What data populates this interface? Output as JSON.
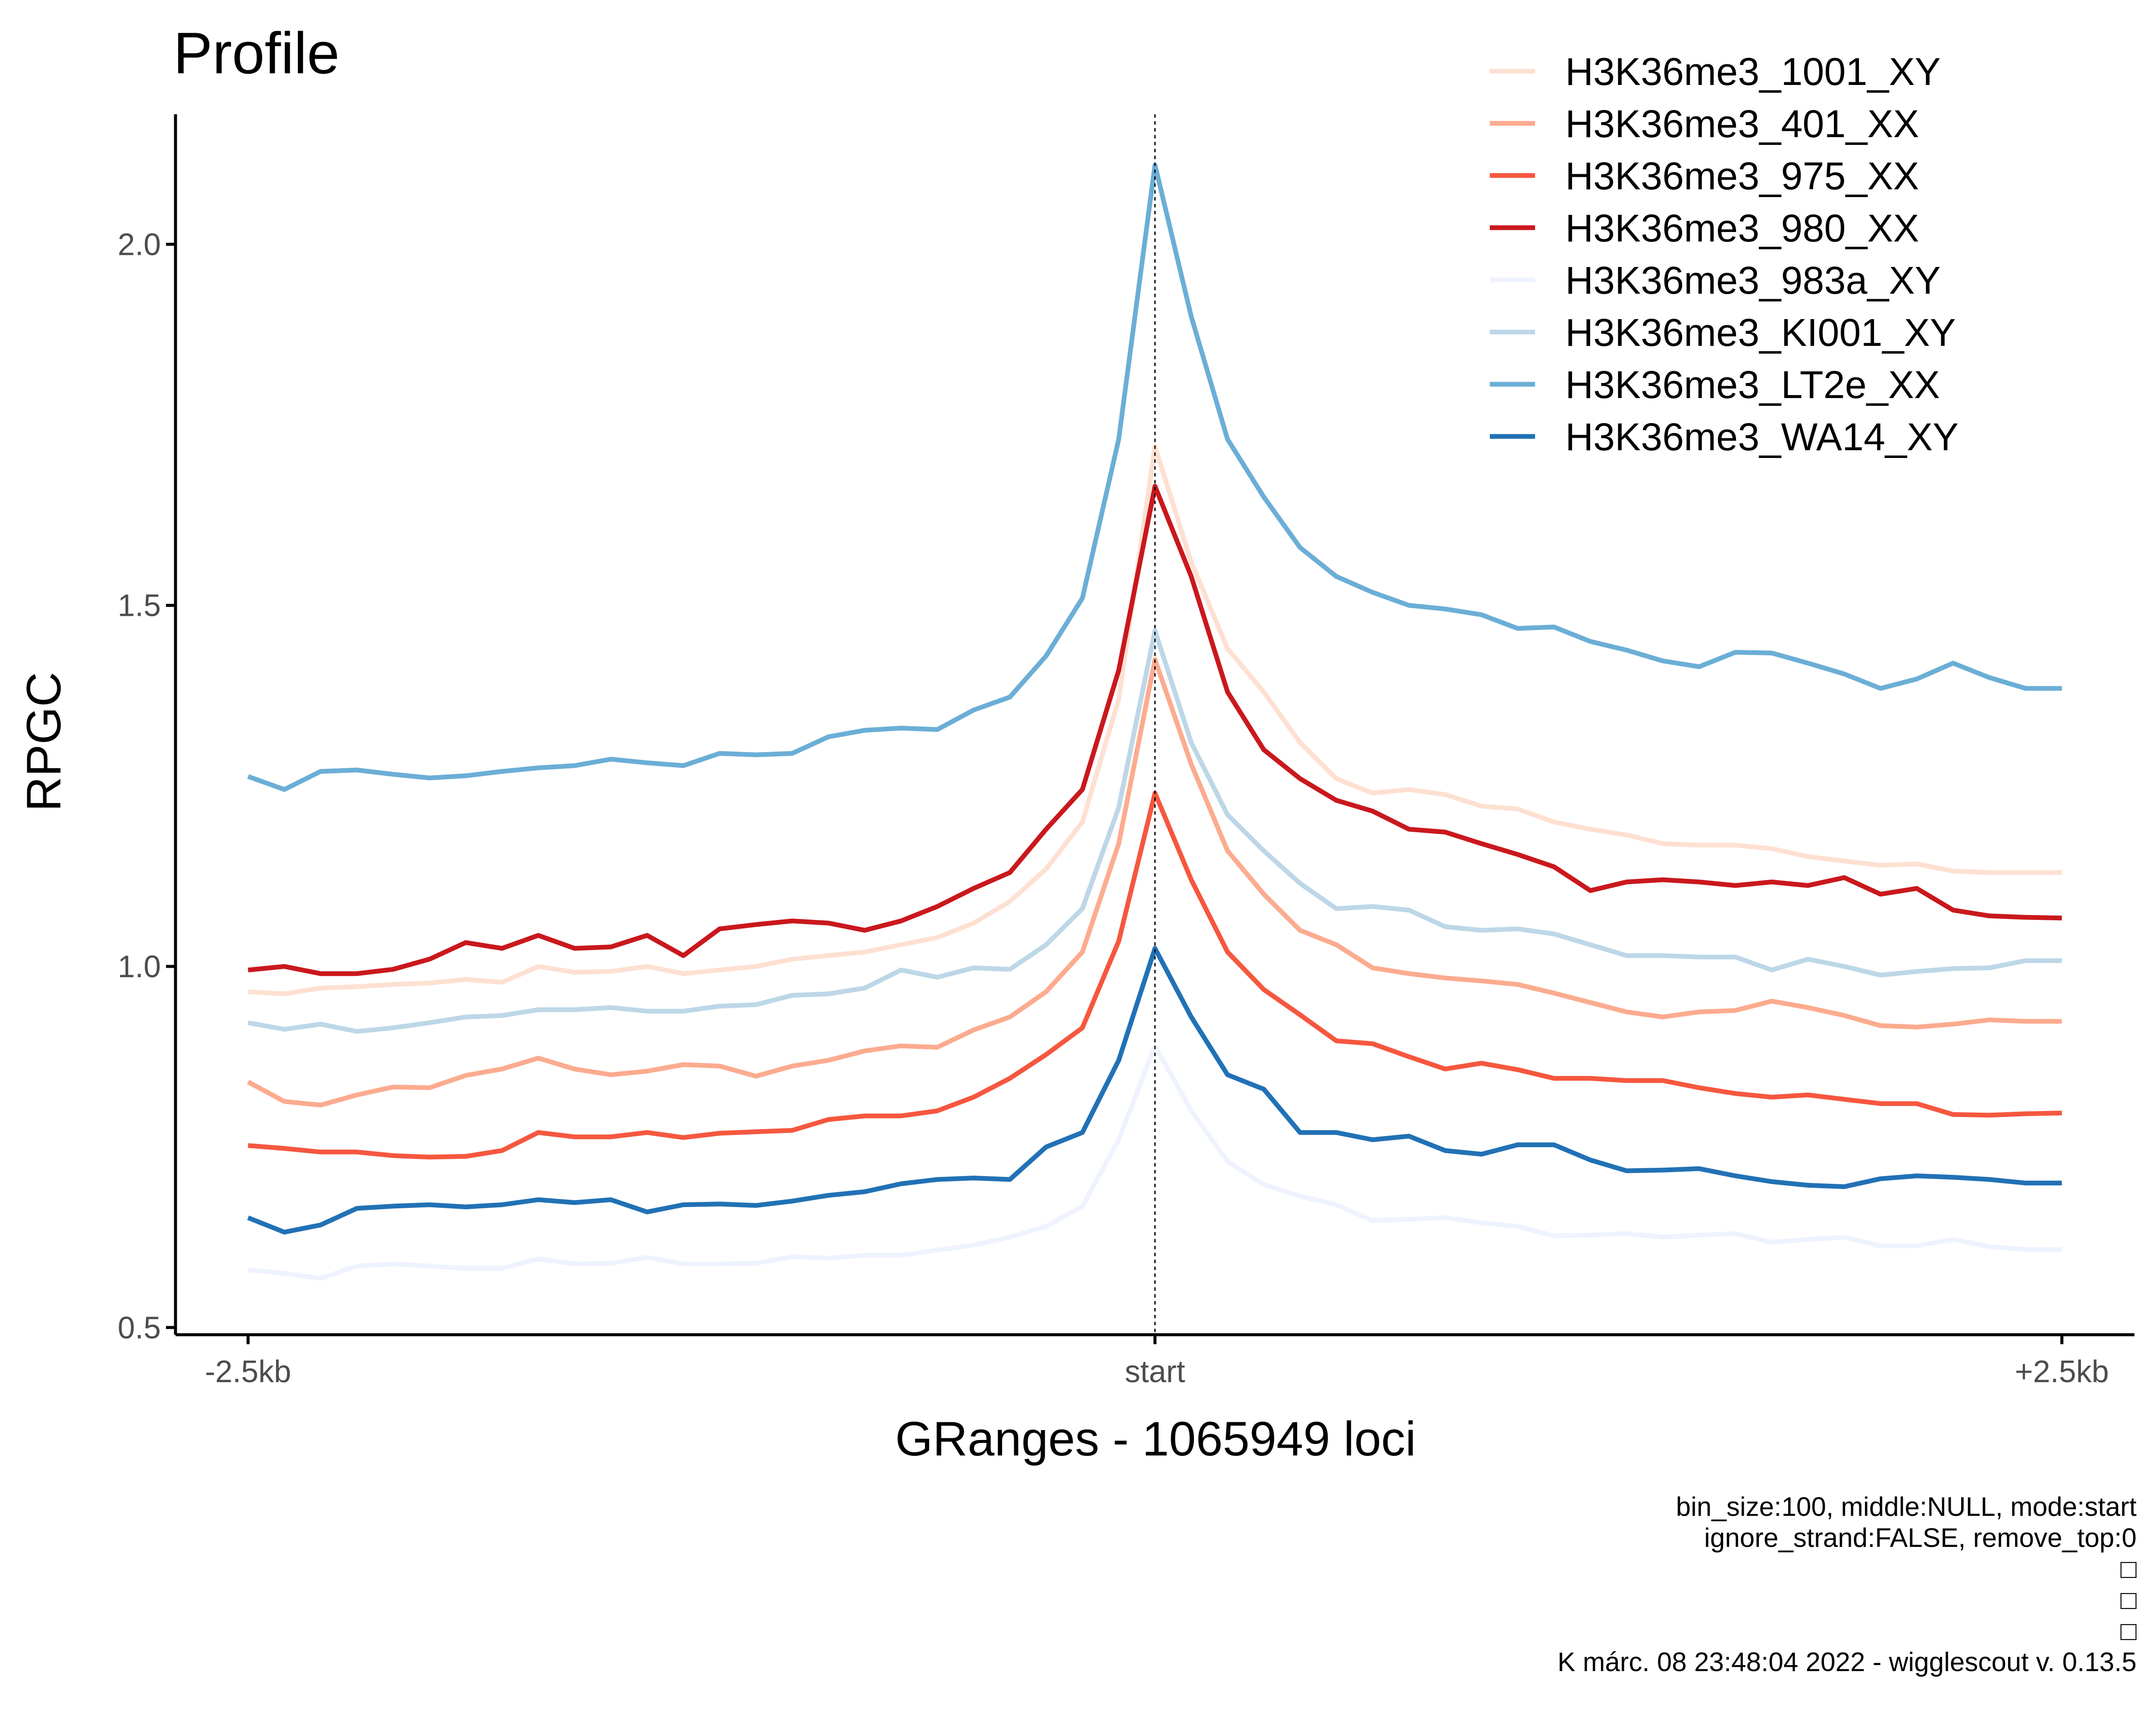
{
  "chart_data": {
    "type": "line",
    "title": "Profile",
    "xlabel": "GRanges - 1065949 loci",
    "ylabel": "RPGC",
    "x_tick_labels": [
      "-2.5kb",
      "start",
      "+2.5kb"
    ],
    "y_ticks": [
      "0.5",
      "1.0",
      "1.5",
      "2.0"
    ],
    "x": [
      -2500,
      -2400,
      -2300,
      -2200,
      -2100,
      -2000,
      -1900,
      -1800,
      -1700,
      -1600,
      -1500,
      -1400,
      -1300,
      -1200,
      -1100,
      -1000,
      -900,
      -800,
      -700,
      -600,
      -500,
      -400,
      -300,
      -200,
      -100,
      0,
      100,
      200,
      300,
      400,
      500,
      600,
      700,
      800,
      900,
      1000,
      1100,
      1200,
      1300,
      1400,
      1500,
      1600,
      1700,
      1800,
      1900,
      2000,
      2100,
      2200,
      2300,
      2400,
      2500
    ],
    "xlim": [
      -2700,
      2700
    ],
    "ylim": [
      0.49,
      2.18
    ],
    "reference_line": {
      "x": 0,
      "style": "dotted"
    },
    "grid": false,
    "legend_position": "top-right",
    "series": [
      {
        "name": "H3K36me3_1001_XY",
        "color": "#fee0d2",
        "values": [
          0.965,
          0.962,
          0.97,
          0.972,
          0.975,
          0.977,
          0.982,
          0.978,
          1.0,
          0.992,
          0.993,
          1.0,
          0.99,
          0.995,
          1.0,
          1.01,
          1.015,
          1.02,
          1.03,
          1.04,
          1.06,
          1.09,
          1.135,
          1.2,
          1.37,
          1.72,
          1.56,
          1.44,
          1.38,
          1.31,
          1.26,
          1.24,
          1.245,
          1.238,
          1.222,
          1.218,
          1.2,
          1.19,
          1.182,
          1.17,
          1.168,
          1.168,
          1.163,
          1.152,
          1.146,
          1.14,
          1.142,
          1.132,
          1.13,
          1.13,
          1.13
        ]
      },
      {
        "name": "H3K36me3_401_XX",
        "color": "#fcab8f",
        "values": [
          0.84,
          0.813,
          0.808,
          0.822,
          0.833,
          0.832,
          0.849,
          0.858,
          0.873,
          0.858,
          0.85,
          0.855,
          0.864,
          0.862,
          0.848,
          0.862,
          0.87,
          0.883,
          0.89,
          0.888,
          0.912,
          0.93,
          0.965,
          1.02,
          1.17,
          1.425,
          1.28,
          1.16,
          1.1,
          1.05,
          1.03,
          0.998,
          0.99,
          0.984,
          0.98,
          0.975,
          0.963,
          0.95,
          0.937,
          0.93,
          0.937,
          0.939,
          0.952,
          0.943,
          0.932,
          0.918,
          0.916,
          0.92,
          0.926,
          0.924,
          0.924
        ]
      },
      {
        "name": "H3K36me3_975_XX",
        "color": "#f6573f",
        "values": [
          0.752,
          0.748,
          0.743,
          0.743,
          0.738,
          0.736,
          0.737,
          0.745,
          0.77,
          0.764,
          0.764,
          0.77,
          0.763,
          0.769,
          0.771,
          0.773,
          0.788,
          0.793,
          0.793,
          0.8,
          0.819,
          0.845,
          0.878,
          0.915,
          1.035,
          1.24,
          1.12,
          1.02,
          0.968,
          0.933,
          0.897,
          0.893,
          0.875,
          0.858,
          0.866,
          0.857,
          0.845,
          0.845,
          0.842,
          0.842,
          0.832,
          0.824,
          0.819,
          0.822,
          0.816,
          0.81,
          0.81,
          0.795,
          0.794,
          0.796,
          0.797
        ]
      },
      {
        "name": "H3K36me3_980_XX",
        "color": "#c9181d",
        "values": [
          0.995,
          1.0,
          0.99,
          0.99,
          0.996,
          1.01,
          1.033,
          1.025,
          1.043,
          1.025,
          1.027,
          1.043,
          1.015,
          1.052,
          1.058,
          1.063,
          1.06,
          1.05,
          1.063,
          1.083,
          1.108,
          1.13,
          1.19,
          1.245,
          1.41,
          1.665,
          1.54,
          1.38,
          1.3,
          1.26,
          1.23,
          1.215,
          1.19,
          1.186,
          1.17,
          1.155,
          1.138,
          1.105,
          1.117,
          1.12,
          1.117,
          1.112,
          1.117,
          1.112,
          1.123,
          1.1,
          1.108,
          1.078,
          1.07,
          1.068,
          1.067
        ]
      },
      {
        "name": "H3K36me3_983a_XY",
        "color": "#eff3ff",
        "values": [
          0.58,
          0.575,
          0.568,
          0.585,
          0.588,
          0.585,
          0.582,
          0.582,
          0.595,
          0.588,
          0.589,
          0.597,
          0.588,
          0.588,
          0.589,
          0.598,
          0.596,
          0.6,
          0.6,
          0.607,
          0.614,
          0.625,
          0.64,
          0.668,
          0.76,
          0.89,
          0.8,
          0.73,
          0.698,
          0.682,
          0.67,
          0.648,
          0.65,
          0.652,
          0.645,
          0.64,
          0.627,
          0.628,
          0.63,
          0.625,
          0.628,
          0.63,
          0.618,
          0.622,
          0.625,
          0.613,
          0.613,
          0.622,
          0.612,
          0.608,
          0.608
        ]
      },
      {
        "name": "H3K36me3_KI001_XY",
        "color": "#bdd7e7",
        "values": [
          0.922,
          0.913,
          0.92,
          0.91,
          0.915,
          0.922,
          0.93,
          0.932,
          0.94,
          0.94,
          0.943,
          0.938,
          0.938,
          0.945,
          0.947,
          0.96,
          0.962,
          0.97,
          0.995,
          0.985,
          0.998,
          0.996,
          1.03,
          1.08,
          1.22,
          1.465,
          1.31,
          1.21,
          1.16,
          1.115,
          1.08,
          1.083,
          1.078,
          1.055,
          1.05,
          1.052,
          1.045,
          1.03,
          1.015,
          1.015,
          1.013,
          1.013,
          0.995,
          1.01,
          1.0,
          0.988,
          0.993,
          0.997,
          0.998,
          1.008,
          1.008
        ]
      },
      {
        "name": "H3K36me3_LT2e_XX",
        "color": "#6baed6",
        "values": [
          1.263,
          1.245,
          1.27,
          1.272,
          1.266,
          1.261,
          1.264,
          1.27,
          1.275,
          1.278,
          1.287,
          1.282,
          1.278,
          1.295,
          1.293,
          1.295,
          1.318,
          1.327,
          1.33,
          1.328,
          1.355,
          1.373,
          1.43,
          1.51,
          1.73,
          2.11,
          1.9,
          1.73,
          1.65,
          1.58,
          1.54,
          1.518,
          1.5,
          1.495,
          1.487,
          1.468,
          1.47,
          1.45,
          1.438,
          1.423,
          1.415,
          1.435,
          1.434,
          1.42,
          1.405,
          1.385,
          1.398,
          1.42,
          1.4,
          1.385,
          1.385
        ]
      },
      {
        "name": "H3K36me3_WA14_XY",
        "color": "#2171b5",
        "values": [
          0.652,
          0.632,
          0.642,
          0.665,
          0.668,
          0.67,
          0.667,
          0.67,
          0.677,
          0.673,
          0.677,
          0.66,
          0.67,
          0.671,
          0.669,
          0.675,
          0.683,
          0.688,
          0.699,
          0.705,
          0.707,
          0.705,
          0.75,
          0.77,
          0.87,
          1.025,
          0.93,
          0.85,
          0.83,
          0.77,
          0.77,
          0.76,
          0.765,
          0.745,
          0.74,
          0.753,
          0.753,
          0.732,
          0.717,
          0.718,
          0.72,
          0.71,
          0.702,
          0.697,
          0.695,
          0.706,
          0.71,
          0.708,
          0.705,
          0.7,
          0.7
        ]
      }
    ]
  },
  "caption_lines": [
    "bin_size:100, middle:NULL, mode:start",
    "ignore_strand:FALSE, remove_top:0",
    "□",
    "□",
    "□",
    "K márc. 08 23:48:04 2022 - wigglescout v. 0.13.5"
  ]
}
